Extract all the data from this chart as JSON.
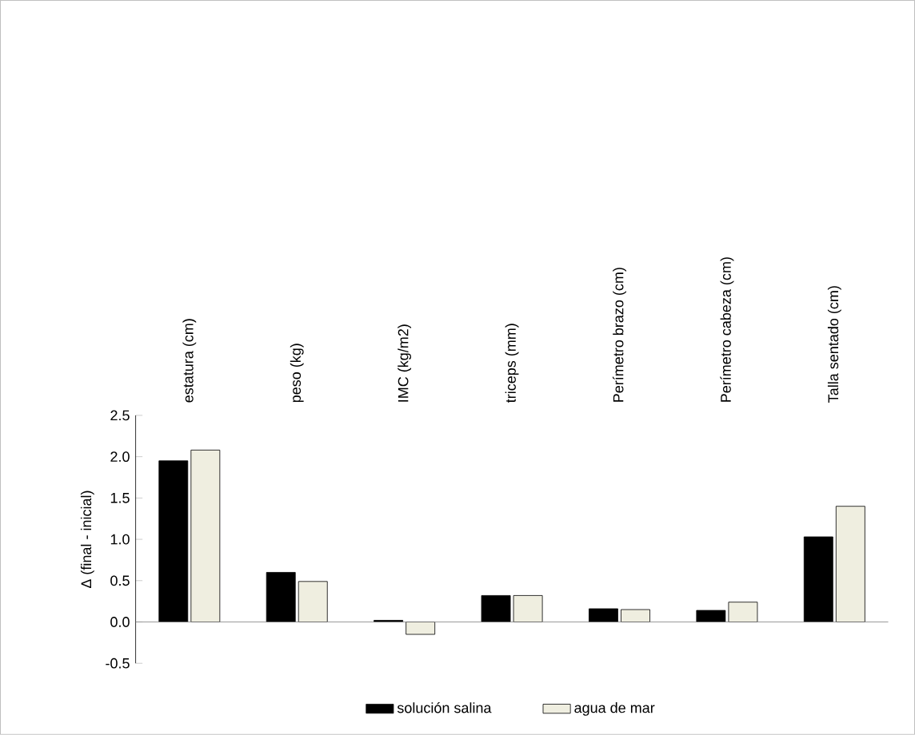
{
  "chart_data": {
    "type": "bar",
    "ylabel": "Δ (final - inicial)",
    "categories": [
      "estatura (cm)",
      "peso (kg)",
      "IMC (kg/m2)",
      "triceps (mm)",
      "Perímetro brazo (cm)",
      "Perímetro cabeza (cm)",
      "Talla sentado (cm)"
    ],
    "series": [
      {
        "name": "solución salina",
        "color": "#000000",
        "values": [
          1.95,
          0.6,
          0.02,
          0.32,
          0.16,
          0.14,
          1.03
        ]
      },
      {
        "name": "agua de mar",
        "color": "#efeee0",
        "values": [
          2.08,
          0.49,
          -0.15,
          0.32,
          0.15,
          0.24,
          1.4
        ]
      }
    ],
    "ylim": [
      -0.5,
      2.5
    ],
    "yticks": [
      -0.5,
      {
        "value": 0,
        "label": "0.0"
      },
      0.5,
      {
        "value": 1,
        "label": "1.0"
      },
      1.5,
      {
        "value": 2,
        "label": "2.0"
      },
      2.5
    ],
    "legend": "bottom"
  }
}
